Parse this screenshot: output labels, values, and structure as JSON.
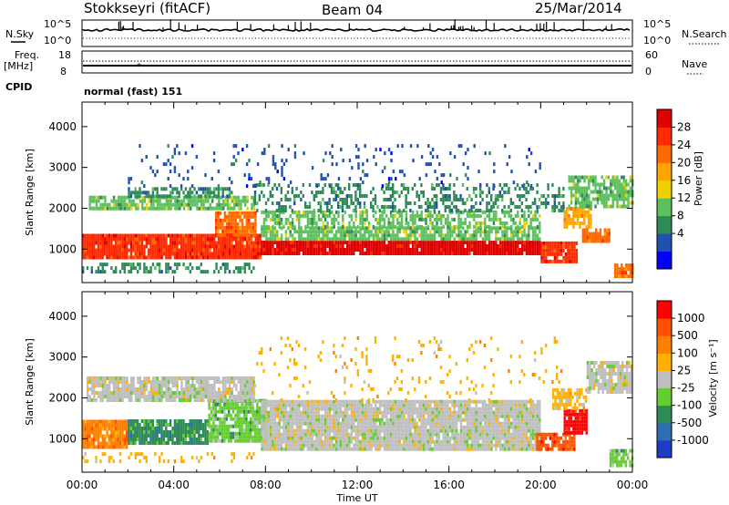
{
  "header": {
    "station": "Stokkseyri (fitACF)",
    "beam": "Beam 04",
    "date": "25/Mar/2014"
  },
  "top_panel": {
    "nsky_label": "N.Sky",
    "nsearch_label": "N.Search",
    "left_ticks": [
      "10^5",
      "10^0"
    ],
    "right_ticks": [
      "10^5",
      "10^0"
    ]
  },
  "freq_panel": {
    "freq_label": "Freq.",
    "unit_label": "[MHz]",
    "nave_label": "Nave",
    "left_ticks": [
      "18",
      "8"
    ],
    "right_ticks": [
      "60",
      "0"
    ],
    "cpid_label": "CPID",
    "cpid_text": "normal (fast) 151"
  },
  "colors": {
    "power": [
      "#0000ff",
      "#2050b0",
      "#2e8b57",
      "#5cc05c",
      "#f0d000",
      "#ffa500",
      "#ff6a00",
      "#ff2a00",
      "#e00000"
    ],
    "velocity": [
      "#1e3cc8",
      "#2b6fb0",
      "#2e8b57",
      "#66cc33",
      "#bfbfbf",
      "#ffb000",
      "#ff8000",
      "#ff5000",
      "#ff0000"
    ]
  },
  "chart_data": [
    {
      "type": "heatmap",
      "name": "power",
      "xlabel": "",
      "ylabel": "Slant Range [km]",
      "xlim": [
        "00:00",
        "24:00"
      ],
      "ylim": [
        180,
        4600
      ],
      "yticks": [
        "1000",
        "2000",
        "3000",
        "4000"
      ],
      "colorbar_label": "Power [dB]",
      "colorbar_ticks": [
        "28",
        "24",
        "20",
        "16",
        "12",
        "8",
        "4"
      ],
      "bands": [
        {
          "t0": 0.0,
          "t1": 7.8,
          "r_lo": 750,
          "r_hi": 1350,
          "color": 7,
          "density": 0.95
        },
        {
          "t0": 5.8,
          "t1": 7.6,
          "r_lo": 1300,
          "r_hi": 1900,
          "color": 6,
          "density": 0.9
        },
        {
          "t0": 7.8,
          "t1": 20.0,
          "r_lo": 850,
          "r_hi": 1200,
          "color": 8,
          "density": 0.97
        },
        {
          "t0": 7.8,
          "t1": 20.0,
          "r_lo": 1200,
          "r_hi": 1500,
          "color": 3,
          "density": 0.8
        },
        {
          "t0": 7.8,
          "t1": 20.0,
          "r_lo": 1500,
          "r_hi": 1900,
          "color": 3,
          "density": 0.55
        },
        {
          "t0": 0.3,
          "t1": 7.5,
          "r_lo": 1950,
          "r_hi": 2250,
          "color": 3,
          "density": 0.8
        },
        {
          "t0": 2.0,
          "t1": 6.5,
          "r_lo": 2250,
          "r_hi": 2450,
          "color": 2,
          "density": 0.6
        },
        {
          "t0": 7.5,
          "t1": 21.0,
          "r_lo": 1900,
          "r_hi": 2600,
          "color": 2,
          "density": 0.35
        },
        {
          "t0": 0.0,
          "t1": 7.5,
          "r_lo": 400,
          "r_hi": 600,
          "color": 2,
          "density": 0.5
        },
        {
          "t0": 2.0,
          "t1": 20.0,
          "r_lo": 2500,
          "r_hi": 3500,
          "color": 1,
          "density": 0.08
        },
        {
          "t0": 20.0,
          "t1": 21.6,
          "r_lo": 650,
          "r_hi": 1150,
          "color": 7,
          "density": 0.9
        },
        {
          "t0": 21.0,
          "t1": 22.2,
          "r_lo": 1500,
          "r_hi": 2000,
          "color": 5,
          "density": 0.85
        },
        {
          "t0": 21.8,
          "t1": 23.0,
          "r_lo": 1150,
          "r_hi": 1500,
          "color": 6,
          "density": 0.85
        },
        {
          "t0": 21.2,
          "t1": 24.0,
          "r_lo": 2000,
          "r_hi": 2800,
          "color": 3,
          "density": 0.75
        },
        {
          "t0": 23.2,
          "t1": 24.0,
          "r_lo": 200,
          "r_hi": 600,
          "color": 6,
          "density": 0.85
        }
      ]
    },
    {
      "type": "heatmap",
      "name": "velocity",
      "xlabel": "Time UT",
      "ylabel": "Slant Range [km]",
      "xlim": [
        "00:00",
        "24:00"
      ],
      "ylim": [
        180,
        4600
      ],
      "xticks": [
        "00:00",
        "04:00",
        "08:00",
        "12:00",
        "16:00",
        "20:00",
        "00:00"
      ],
      "yticks": [
        "1000",
        "2000",
        "3000",
        "4000"
      ],
      "colorbar_label": "Velocity [m s⁻¹]",
      "colorbar_ticks": [
        "1000",
        "500",
        "100",
        "25",
        "-25",
        "-100",
        "-500",
        "-1000"
      ],
      "bands": [
        {
          "t0": 0.0,
          "t1": 2.0,
          "r_lo": 750,
          "r_hi": 1400,
          "color": 6,
          "density": 0.95
        },
        {
          "t0": 2.0,
          "t1": 5.5,
          "r_lo": 850,
          "r_hi": 1450,
          "color": 2,
          "density": 0.9
        },
        {
          "t0": 5.5,
          "t1": 8.0,
          "r_lo": 900,
          "r_hi": 1900,
          "color": 3,
          "density": 0.9
        },
        {
          "t0": 7.8,
          "t1": 20.0,
          "r_lo": 700,
          "r_hi": 1900,
          "color": 4,
          "density": 0.95
        },
        {
          "t0": 0.2,
          "t1": 7.5,
          "r_lo": 1900,
          "r_hi": 2500,
          "color": 4,
          "density": 0.85
        },
        {
          "t0": 0.0,
          "t1": 7.5,
          "r_lo": 400,
          "r_hi": 650,
          "color": 5,
          "density": 0.25
        },
        {
          "t0": 7.5,
          "t1": 21.0,
          "r_lo": 1900,
          "r_hi": 3500,
          "color": 5,
          "density": 0.06
        },
        {
          "t0": 19.8,
          "t1": 21.5,
          "r_lo": 700,
          "r_hi": 1100,
          "color": 7,
          "density": 0.9
        },
        {
          "t0": 21.0,
          "t1": 22.0,
          "r_lo": 1100,
          "r_hi": 1700,
          "color": 8,
          "density": 0.9
        },
        {
          "t0": 20.5,
          "t1": 22.0,
          "r_lo": 1700,
          "r_hi": 2200,
          "color": 5,
          "density": 0.7
        },
        {
          "t0": 22.0,
          "t1": 24.0,
          "r_lo": 2100,
          "r_hi": 2900,
          "color": 4,
          "density": 0.85
        },
        {
          "t0": 23.0,
          "t1": 24.0,
          "r_lo": 300,
          "r_hi": 700,
          "color": 3,
          "density": 0.75
        }
      ]
    }
  ]
}
